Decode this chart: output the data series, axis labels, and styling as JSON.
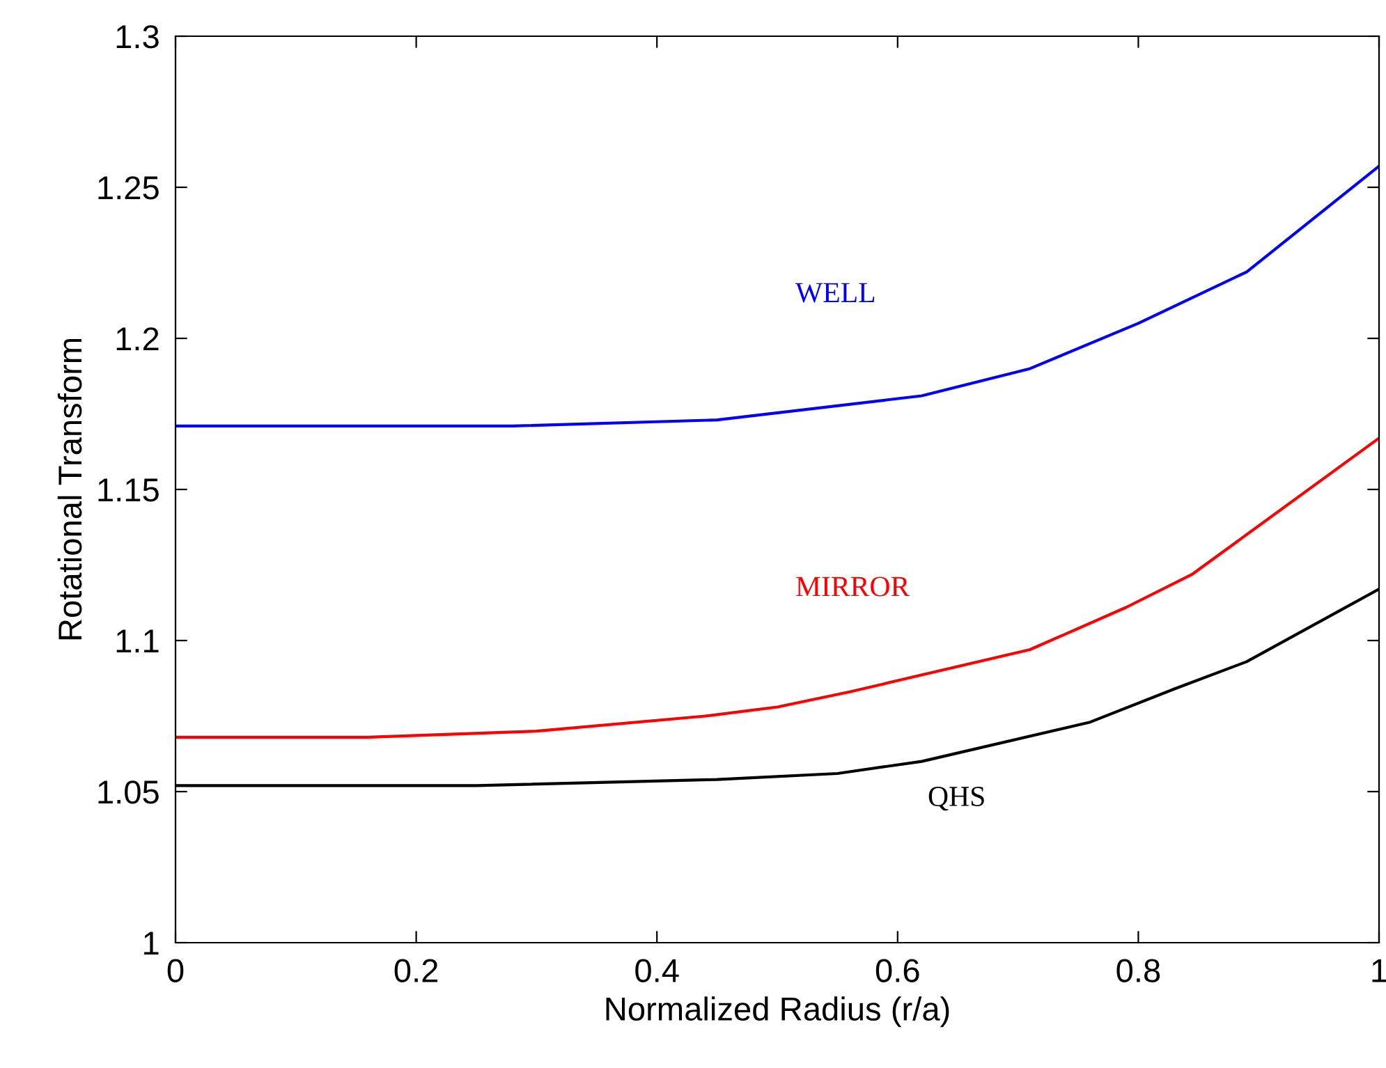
{
  "chart_data": {
    "type": "line",
    "xlabel": "Normalized Radius (r/a)",
    "ylabel": "Rotational Transform",
    "xlim": [
      0,
      1
    ],
    "xticks": [
      0,
      0.2,
      0.4,
      0.6,
      0.8,
      1
    ],
    "ylim": [
      1,
      1.3
    ],
    "yticks": [
      1,
      1.05,
      1.1,
      1.15,
      1.2,
      1.25,
      1.3
    ],
    "grid": false,
    "marker": "none",
    "line_style": "solid",
    "series": [
      {
        "name": "WELL",
        "color": "#0000ff",
        "x": [
          0,
          0.28,
          0.45,
          0.62,
          0.71,
          0.8,
          0.89,
          1.0
        ],
        "values": [
          1.171,
          1.171,
          1.173,
          1.181,
          1.19,
          1.205,
          1.222,
          1.257
        ]
      },
      {
        "name": "MIRROR",
        "color": "#ff0000",
        "x": [
          0,
          0.16,
          0.3,
          0.44,
          0.5,
          0.56,
          0.71,
          0.79,
          0.845,
          1.0
        ],
        "values": [
          1.068,
          1.068,
          1.07,
          1.075,
          1.078,
          1.083,
          1.097,
          1.111,
          1.122,
          1.167
        ]
      },
      {
        "name": "QHS",
        "color": "#000000",
        "x": [
          0,
          0.25,
          0.45,
          0.55,
          0.62,
          0.76,
          0.83,
          0.89,
          1.0
        ],
        "values": [
          1.052,
          1.052,
          1.054,
          1.056,
          1.06,
          1.073,
          1.084,
          1.093,
          1.117
        ]
      }
    ]
  }
}
